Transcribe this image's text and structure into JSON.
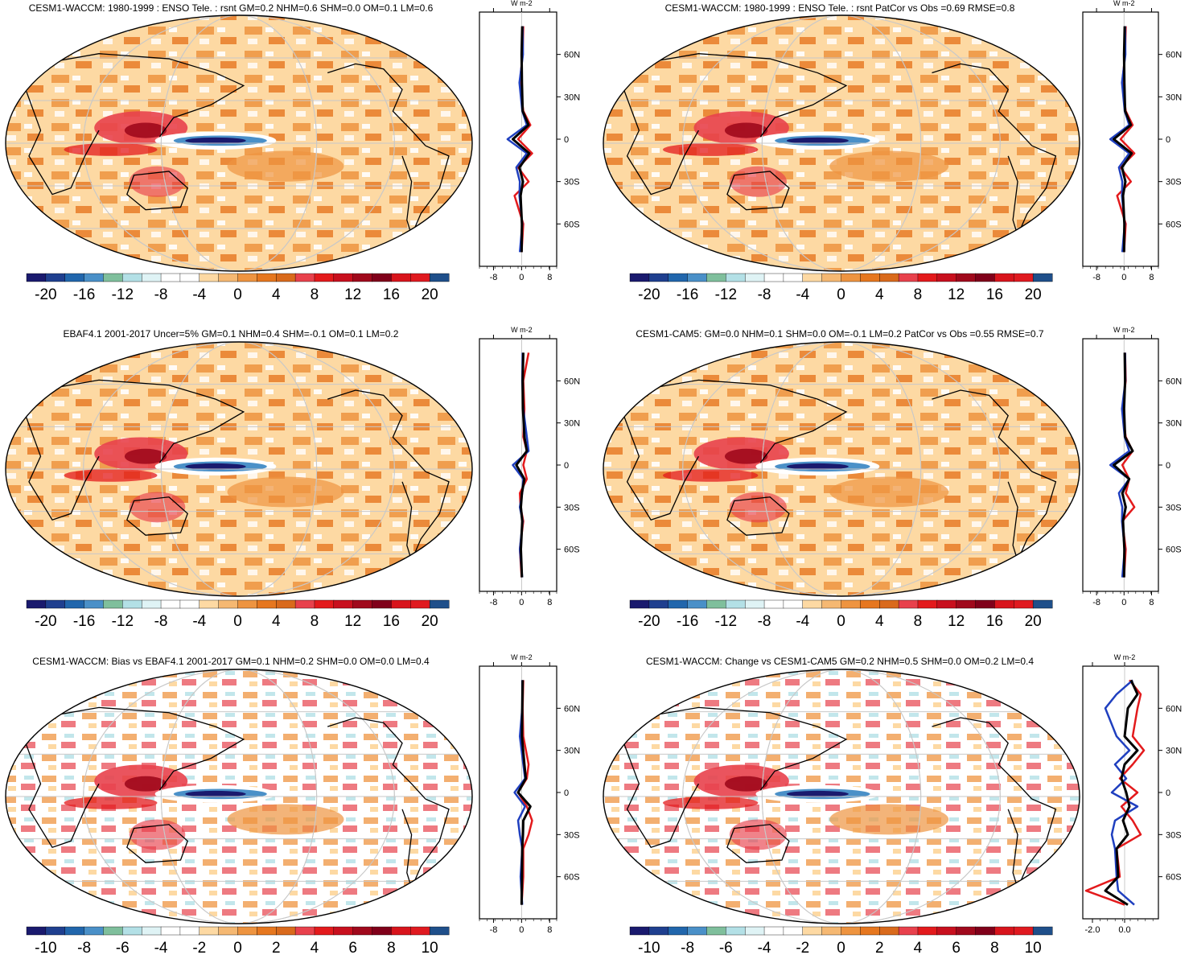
{
  "colors": {
    "land_outline": "#000000",
    "graticule": "#c8c8c8",
    "map_background": "#fdd9a3",
    "zonal_model": "#e31a1c",
    "zonal_obs": "#1f3fbf",
    "zonal_diff": "#000000"
  },
  "palette": [
    "#1a1a6e",
    "#1f3f8f",
    "#2166ac",
    "#4a90c8",
    "#7fbf9c",
    "#b3e0e6",
    "#dff3f5",
    "#ffffff",
    "#ffffff",
    "#fdd9a3",
    "#f5b872",
    "#ee9440",
    "#e6771f",
    "#d96a1c",
    "#e8414c",
    "#e31a1c",
    "#c8101e",
    "#a0091c",
    "#80001a",
    "#d8141c",
    "#e01a20",
    "#1f4f8a"
  ],
  "panels": [
    {
      "title": "CESM1-WACCM: 1980-1999 : ENSO Tele. : rsnt GM=0.2 NHM=0.6 SHM=0.0 OM=0.1 LM=0.6",
      "colorbar_labels": [
        "-20",
        "-16",
        "-12",
        "-8",
        "-4",
        "0",
        "4",
        "8",
        "12",
        "16",
        "20"
      ],
      "zonal": {
        "unit": "W m-2",
        "xticks": [
          -8,
          0,
          8
        ],
        "xtick_labels": [
          "-8",
          "0",
          "8"
        ],
        "xlim": [
          -12,
          10
        ],
        "lat_labels": [
          "60N",
          "30N",
          "0",
          "30S",
          "60S"
        ],
        "lats": [
          60,
          30,
          0,
          -30,
          -60
        ]
      }
    },
    {
      "title": "CESM1-WACCM: 1980-1999 : ENSO Tele. : rsnt PatCor vs Obs =0.69 RMSE=0.8",
      "colorbar_labels": [
        "-20",
        "-16",
        "-12",
        "-8",
        "-4",
        "0",
        "4",
        "8",
        "12",
        "16",
        "20"
      ],
      "zonal": {
        "unit": "W m-2",
        "xticks": [
          -8,
          0,
          8
        ],
        "xtick_labels": [
          "-8",
          "0",
          "8"
        ],
        "xlim": [
          -12,
          10
        ],
        "lat_labels": [
          "60N",
          "30N",
          "0",
          "30S",
          "60S"
        ],
        "lats": [
          60,
          30,
          0,
          -30,
          -60
        ]
      }
    },
    {
      "title": "EBAF4.1 2001-2017 Uncer=5% GM=0.1 NHM=0.4 SHM=-0.1 OM=0.1 LM=0.2",
      "colorbar_labels": [
        "-20",
        "-16",
        "-12",
        "-8",
        "-4",
        "0",
        "4",
        "8",
        "12",
        "16",
        "20"
      ],
      "zonal": {
        "unit": "W m-2",
        "xticks": [
          -8,
          0,
          8
        ],
        "xtick_labels": [
          "-8",
          "0",
          "8"
        ],
        "xlim": [
          -12,
          10
        ],
        "lat_labels": [
          "60N",
          "30N",
          "0",
          "30S",
          "60S"
        ],
        "lats": [
          60,
          30,
          0,
          -30,
          -60
        ]
      }
    },
    {
      "title": "CESM1-CAM5: GM=0.0 NHM=0.1 SHM=0.0 OM=-0.1 LM=0.2 PatCor vs Obs =0.55 RMSE=0.7",
      "colorbar_labels": [
        "-20",
        "-16",
        "-12",
        "-8",
        "-4",
        "0",
        "4",
        "8",
        "12",
        "16",
        "20"
      ],
      "zonal": {
        "unit": "W m-2",
        "xticks": [
          -8,
          0,
          8
        ],
        "xtick_labels": [
          "-8",
          "0",
          "8"
        ],
        "xlim": [
          -12,
          10
        ],
        "lat_labels": [
          "60N",
          "30N",
          "0",
          "30S",
          "60S"
        ],
        "lats": [
          60,
          30,
          0,
          -30,
          -60
        ]
      }
    },
    {
      "title": "CESM1-WACCM: Bias vs EBAF4.1 2001-2017 GM=0.1 NHM=0.2 SHM=0.0 OM=0.0 LM=0.4",
      "colorbar_labels": [
        "-10",
        "-8",
        "-6",
        "-4",
        "-2",
        "0",
        "2",
        "4",
        "6",
        "8",
        "10"
      ],
      "zonal": {
        "unit": "W m-2",
        "xticks": [
          -8,
          0,
          8
        ],
        "xtick_labels": [
          "-8",
          "0",
          "8"
        ],
        "xlim": [
          -12,
          10
        ],
        "lat_labels": [
          "60N",
          "30N",
          "0",
          "30S",
          "60S"
        ],
        "lats": [
          60,
          30,
          0,
          -30,
          -60
        ]
      }
    },
    {
      "title": "CESM1-WACCM: Change vs CESM1-CAM5 GM=0.2 NHM=0.5 SHM=0.0 OM=0.2 LM=0.4",
      "colorbar_labels": [
        "-10",
        "-8",
        "-6",
        "-4",
        "-2",
        "0",
        "2",
        "4",
        "6",
        "8",
        "10"
      ],
      "zonal": {
        "unit": "W m-2",
        "xticks": [
          -2.0,
          0.0
        ],
        "xtick_labels": [
          "-2.0",
          "0.0"
        ],
        "xlim": [
          -2.6,
          2.1
        ],
        "lat_labels": [
          "60N",
          "30N",
          "0",
          "30S",
          "60S"
        ],
        "lats": [
          60,
          30,
          0,
          -30,
          -60
        ]
      }
    }
  ],
  "chart_data": [
    {
      "type": "heatmap",
      "title": "CESM1-WACCM: 1980-1999 : ENSO Tele. : rsnt GM=0.2 NHM=0.6 SHM=0.0 OM=0.1 LM=0.6",
      "colorbar_range": [
        -20,
        20
      ],
      "zonal_series": [
        {
          "name": "model",
          "lat": [
            80,
            60,
            40,
            20,
            10,
            0,
            -10,
            -20,
            -30,
            -40,
            -60,
            -80
          ],
          "values": [
            0.5,
            0.3,
            -0.5,
            0.5,
            2.5,
            -1,
            3,
            -1,
            2,
            -2,
            0.5,
            0
          ]
        },
        {
          "name": "obs",
          "lat": [
            80,
            60,
            40,
            20,
            10,
            0,
            -10,
            -20,
            -30,
            -40,
            -60,
            -80
          ],
          "values": [
            0.3,
            0.4,
            -0.6,
            0.2,
            1.5,
            -4,
            1.5,
            -1.5,
            -0.5,
            -0.6,
            0.2,
            -0.5
          ]
        },
        {
          "name": "diff",
          "lat": [
            80,
            60,
            40,
            20,
            10,
            0,
            -10,
            -20,
            -30,
            -40,
            -60,
            -80
          ],
          "values": [
            0.2,
            0,
            0.1,
            0.3,
            2.0,
            -2.5,
            2.2,
            -0.6,
            0.4,
            -0.3,
            0.1,
            0
          ]
        }
      ]
    },
    {
      "type": "heatmap",
      "title": "CESM1-WACCM: 1980-1999 : ENSO Tele. : rsnt PatCor vs Obs =0.69 RMSE=0.8",
      "colorbar_range": [
        -20,
        20
      ],
      "zonal_series": [
        {
          "name": "model",
          "lat": [
            80,
            60,
            40,
            20,
            10,
            0,
            -10,
            -20,
            -30,
            -40,
            -60,
            -80
          ],
          "values": [
            0.5,
            0.3,
            -0.5,
            0.5,
            2.5,
            -1,
            3,
            -1,
            2,
            -2,
            0.5,
            0
          ]
        },
        {
          "name": "obs",
          "lat": [
            80,
            60,
            40,
            20,
            10,
            0,
            -10,
            -20,
            -30,
            -40,
            -60,
            -80
          ],
          "values": [
            0.3,
            0.4,
            -0.6,
            0.2,
            1.5,
            -4,
            1.5,
            -1.5,
            -0.5,
            -0.6,
            0.2,
            -0.5
          ]
        },
        {
          "name": "diff",
          "lat": [
            80,
            60,
            40,
            20,
            10,
            0,
            -10,
            -20,
            -30,
            -40,
            -60,
            -80
          ],
          "values": [
            0.2,
            0,
            0.1,
            0.3,
            2.0,
            -3,
            2.2,
            -0.6,
            0.4,
            -0.3,
            0.1,
            0
          ]
        }
      ]
    },
    {
      "type": "heatmap",
      "title": "EBAF4.1 2001-2017 Uncer=5% GM=0.1 NHM=0.4 SHM=-0.1 OM=0.1 LM=0.2",
      "colorbar_range": [
        -20,
        20
      ],
      "zonal_series": [
        {
          "name": "model",
          "lat": [
            80,
            60,
            40,
            20,
            10,
            0,
            -10,
            -20,
            -30,
            -40,
            -60,
            -80
          ],
          "values": [
            2,
            0.5,
            0.8,
            0.5,
            1.5,
            0.5,
            1.5,
            -0.5,
            -0.3,
            0.5,
            -0.5,
            0
          ]
        },
        {
          "name": "obs",
          "lat": [
            80,
            60,
            40,
            20,
            10,
            0,
            -10,
            -20,
            -30,
            -40,
            -60,
            -80
          ],
          "values": [
            0.3,
            0.2,
            0.5,
            1.5,
            2.0,
            -2.5,
            0.5,
            0.2,
            -0.5,
            0.3,
            -0.5,
            0.2
          ]
        },
        {
          "name": "diff",
          "lat": [
            80,
            60,
            40,
            20,
            10,
            0,
            -10,
            -20,
            -30,
            -40,
            -60,
            -80
          ],
          "values": [
            0.5,
            0.3,
            0.4,
            0.8,
            1.5,
            -1.5,
            0.8,
            0.1,
            -0.2,
            0.2,
            -0.2,
            0.1
          ]
        }
      ]
    },
    {
      "type": "heatmap",
      "title": "CESM1-CAM5: GM=0.0 NHM=0.1 SHM=0.0 OM=-0.1 LM=0.2 PatCor vs Obs =0.55 RMSE=0.7",
      "colorbar_range": [
        -20,
        20
      ],
      "zonal_series": [
        {
          "name": "model",
          "lat": [
            80,
            60,
            40,
            20,
            10,
            0,
            -10,
            -20,
            -30,
            -40,
            -60,
            -80
          ],
          "values": [
            0.3,
            0.5,
            -0.5,
            0.5,
            2.5,
            -0.5,
            1.5,
            0.5,
            3,
            -0.5,
            0.5,
            0
          ]
        },
        {
          "name": "obs",
          "lat": [
            80,
            60,
            40,
            20,
            10,
            0,
            -10,
            -20,
            -30,
            -40,
            -60,
            -80
          ],
          "values": [
            0.3,
            0.4,
            -0.6,
            0.2,
            1.5,
            -4,
            1.5,
            -1.5,
            -0.5,
            -0.6,
            0.2,
            -0.5
          ]
        },
        {
          "name": "diff",
          "lat": [
            80,
            60,
            40,
            20,
            10,
            0,
            -10,
            -20,
            -30,
            -40,
            -60,
            -80
          ],
          "values": [
            0.2,
            0.3,
            0,
            0.3,
            2.5,
            -3,
            1.5,
            -0.5,
            0.5,
            -0.3,
            0.1,
            0
          ]
        }
      ]
    },
    {
      "type": "heatmap",
      "title": "CESM1-WACCM: Bias vs EBAF4.1 2001-2017 GM=0.1 NHM=0.2 SHM=0.0 OM=0.0 LM=0.4",
      "colorbar_range": [
        -10,
        10
      ],
      "zonal_series": [
        {
          "name": "model",
          "lat": [
            80,
            60,
            40,
            20,
            10,
            0,
            -10,
            -20,
            -30,
            -40,
            -60,
            -80
          ],
          "values": [
            0.5,
            0.3,
            0.5,
            2,
            1.5,
            -1,
            1.5,
            3,
            2,
            0.5,
            0.5,
            0
          ]
        },
        {
          "name": "obs",
          "lat": [
            80,
            60,
            40,
            20,
            10,
            0,
            -10,
            -20,
            -30,
            -40,
            -60,
            -80
          ],
          "values": [
            0.2,
            0.2,
            -0.5,
            0.5,
            1.0,
            -2,
            1.0,
            -1,
            -0.5,
            0.2,
            -0.3,
            0.2
          ]
        },
        {
          "name": "diff",
          "lat": [
            80,
            60,
            40,
            20,
            10,
            0,
            -10,
            -20,
            -30,
            -40,
            -60,
            -80
          ],
          "values": [
            0.3,
            0.2,
            0.1,
            0.8,
            1.2,
            -1,
            2.5,
            0.5,
            0.4,
            0.2,
            0.1,
            0
          ]
        }
      ]
    },
    {
      "type": "heatmap",
      "title": "CESM1-WACCM: Change vs CESM1-CAM5 GM=0.2 NHM=0.5 SHM=0.0 OM=0.2 LM=0.4",
      "colorbar_range": [
        -10,
        10
      ],
      "zonal_series": [
        {
          "name": "model",
          "lat": [
            80,
            70,
            60,
            40,
            30,
            20,
            10,
            0,
            -10,
            -20,
            -30,
            -40,
            -60,
            -70,
            -80
          ],
          "values": [
            0.3,
            1.0,
            0.8,
            0.5,
            1.2,
            0.5,
            -0.3,
            0.8,
            -0.2,
            0.5,
            1.0,
            -0.5,
            -0.3,
            -2.4,
            0
          ]
        },
        {
          "name": "obs",
          "lat": [
            80,
            70,
            60,
            40,
            30,
            20,
            10,
            0,
            -10,
            -20,
            -30,
            -40,
            -60,
            -70,
            -80
          ],
          "values": [
            0.5,
            -0.5,
            -1.2,
            -0.5,
            0.3,
            -0.6,
            0.1,
            -0.8,
            0.8,
            -0.6,
            -0.8,
            -0.6,
            -0.5,
            -0.4,
            0.6
          ]
        },
        {
          "name": "diff",
          "lat": [
            80,
            70,
            60,
            40,
            30,
            20,
            10,
            0,
            -10,
            -20,
            -30,
            -40,
            -60,
            -70,
            -80
          ],
          "values": [
            0.4,
            0.8,
            0.2,
            0,
            0.8,
            0,
            -0.2,
            0.1,
            0.3,
            -0.1,
            0.2,
            -0.5,
            -0.4,
            -1.2,
            0.2
          ]
        }
      ]
    }
  ]
}
